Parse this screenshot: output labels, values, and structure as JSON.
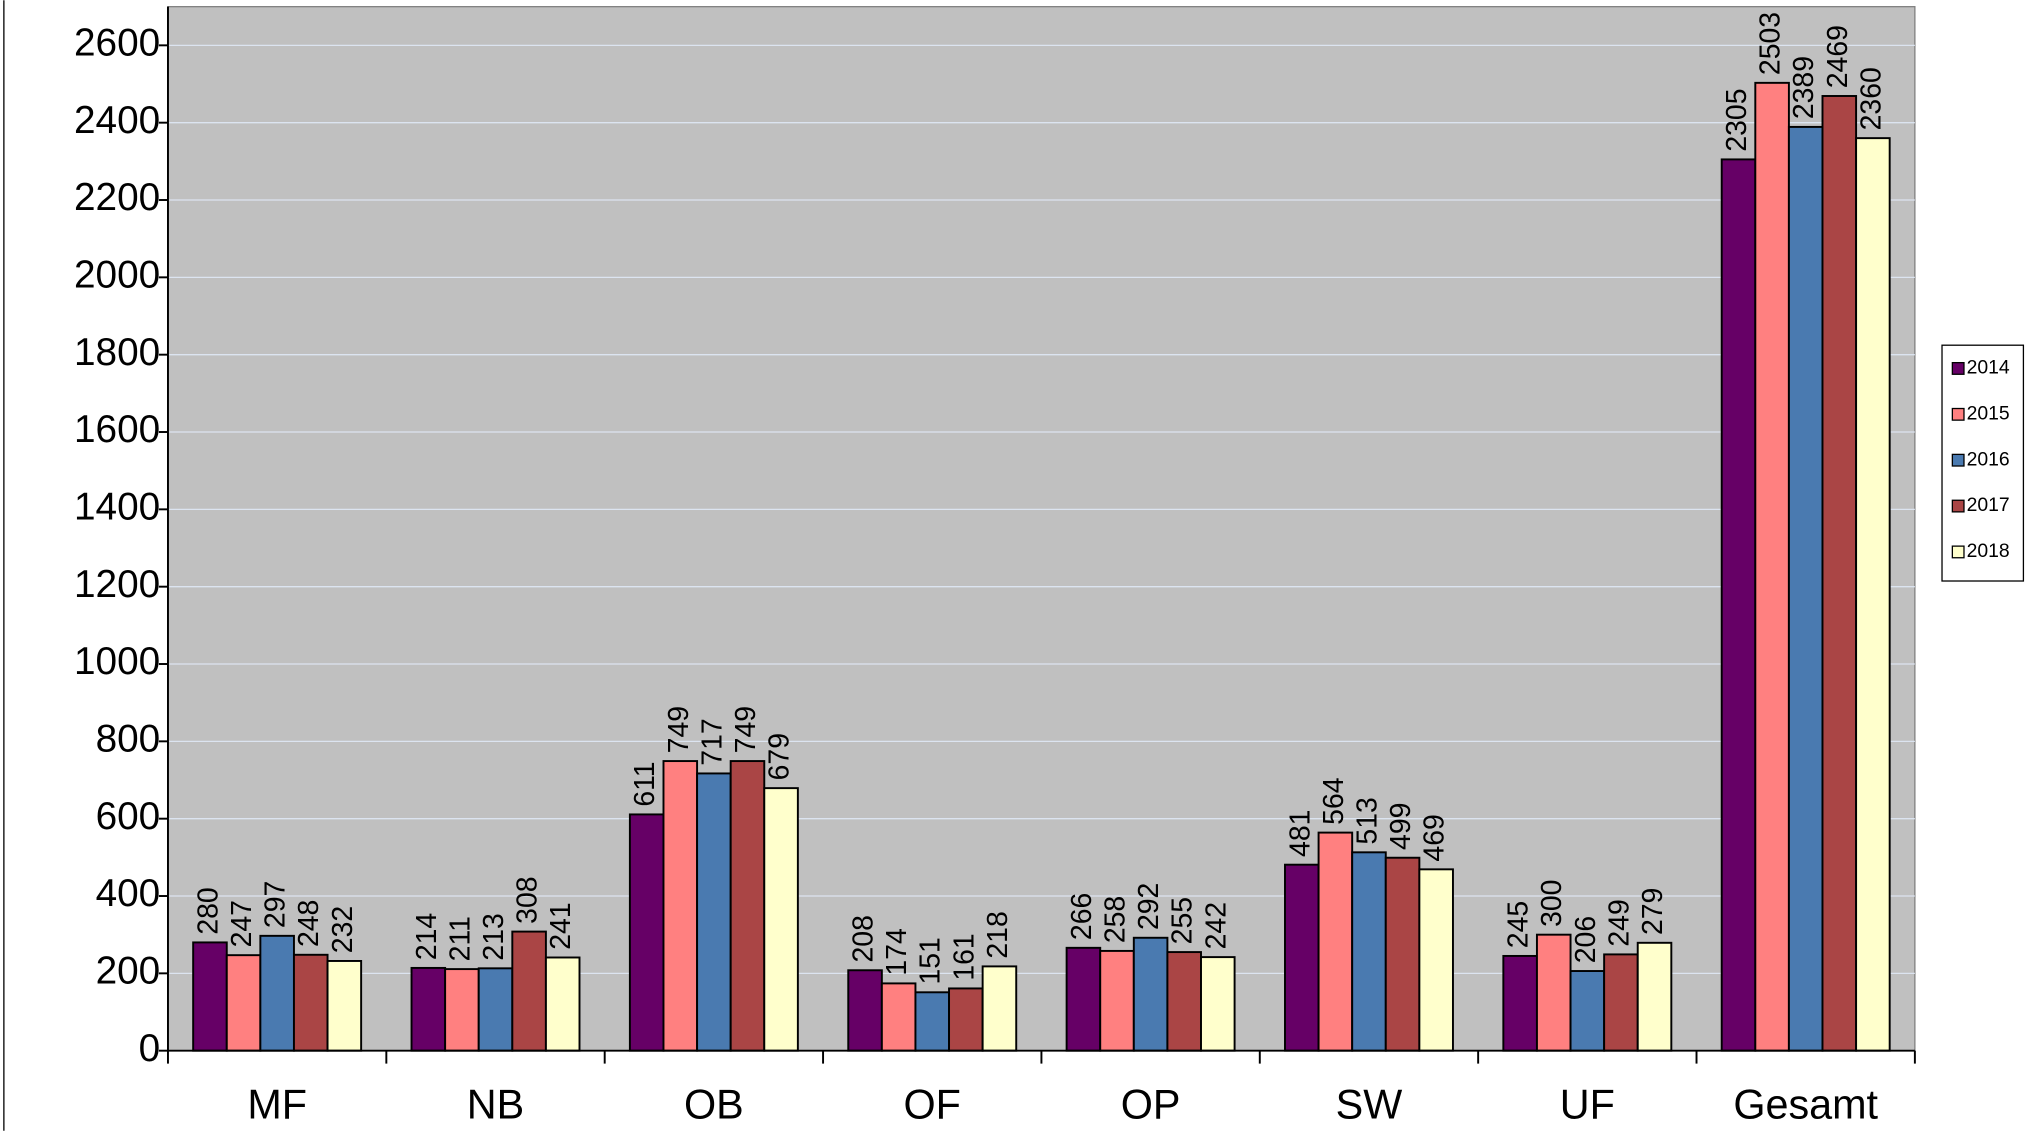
{
  "chart_data": {
    "type": "bar",
    "categories": [
      "MF",
      "NB",
      "OB",
      "OF",
      "OP",
      "SW",
      "UF",
      "Gesamt"
    ],
    "series": [
      {
        "name": "2014",
        "color": "#660066",
        "values": [
          280,
          214,
          611,
          208,
          266,
          481,
          245,
          2305
        ]
      },
      {
        "name": "2015",
        "color": "#ff8080",
        "values": [
          247,
          211,
          749,
          174,
          258,
          564,
          300,
          2503
        ]
      },
      {
        "name": "2016",
        "color": "#4a7ab0",
        "values": [
          297,
          213,
          717,
          151,
          292,
          513,
          206,
          2389
        ]
      },
      {
        "name": "2017",
        "color": "#aa4545",
        "values": [
          248,
          308,
          749,
          161,
          255,
          499,
          249,
          2469
        ]
      },
      {
        "name": "2018",
        "color": "#ffffcc",
        "values": [
          232,
          241,
          679,
          218,
          242,
          469,
          279,
          2360
        ]
      }
    ],
    "ylim": [
      0,
      2700
    ],
    "yticks": [
      0,
      200,
      400,
      600,
      800,
      1000,
      1200,
      1400,
      1600,
      1800,
      2000,
      2200,
      2400,
      2600
    ],
    "grid": true,
    "legend": "right"
  }
}
